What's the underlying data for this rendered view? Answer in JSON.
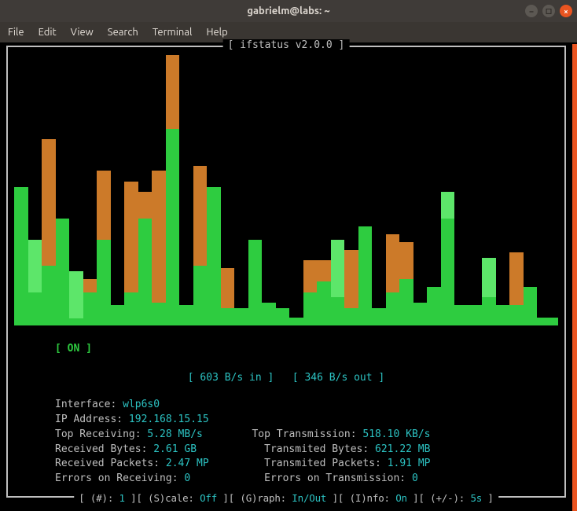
{
  "window": {
    "title": "gabrielm@labs: ~"
  },
  "menubar": [
    "File",
    "Edit",
    "View",
    "Search",
    "Terminal",
    "Help"
  ],
  "app": {
    "title": "[ ifstatus v2.0.0 ]",
    "status": "[ ON ]",
    "rate_in_label": "[ 603 B/s in ]",
    "rate_out_label": "[ 346 B/s out ]"
  },
  "stats": {
    "interface_label": "Interface: ",
    "interface": "wlp6s0",
    "ip_label": "IP Address: ",
    "ip": "192.168.15.15",
    "top_rx_label": "Top Receiving: ",
    "top_rx": "5.28 MB/s",
    "top_tx_label": "Top Transmission: ",
    "top_tx": "518.10 KB/s",
    "rx_bytes_label": "Received Bytes: ",
    "rx_bytes": "2.61 GB",
    "tx_bytes_label": "Transmited Bytes: ",
    "tx_bytes": "621.22 MB",
    "rx_pkts_label": "Received Packets: ",
    "rx_pkts": "2.47 MP",
    "tx_pkts_label": "Transmited Packets: ",
    "tx_pkts": "1.91 MP",
    "err_rx_label": "Errors on Receiving: ",
    "err_rx": "0",
    "err_tx_label": "Errors on Transmission: ",
    "err_tx": "0"
  },
  "footer": {
    "items": [
      {
        "k": "(#)",
        "v": "1"
      },
      {
        "k": "(S)cale",
        "v": "Off"
      },
      {
        "k": "(G)raph",
        "v": "In/Out"
      },
      {
        "k": "(I)nfo",
        "v": "On"
      },
      {
        "k": "(+/-)",
        "v": "5s"
      }
    ]
  },
  "chart": {
    "type": "bar",
    "colors": {
      "in": "#2ecc40",
      "in_light": "#5de66a",
      "out": "#cc7a29",
      "bg": "#000000"
    },
    "max": 100,
    "baseline_pct": 3,
    "bars": [
      {
        "inL": 0,
        "in": 50,
        "out": 0
      },
      {
        "inL": 20,
        "in": 10,
        "out": 0
      },
      {
        "inL": 0,
        "in": 20,
        "out": 48
      },
      {
        "inL": 0,
        "in": 38,
        "out": 0
      },
      {
        "inL": 18,
        "in": 0,
        "out": 0
      },
      {
        "inL": 0,
        "in": 10,
        "out": 5
      },
      {
        "inL": 0,
        "in": 30,
        "out": 26
      },
      {
        "inL": 0,
        "in": 5,
        "out": 0
      },
      {
        "inL": 0,
        "in": 10,
        "out": 42
      },
      {
        "inL": 0,
        "in": 38,
        "out": 10
      },
      {
        "inL": 0,
        "in": 6,
        "out": 50
      },
      {
        "inL": 0,
        "in": 72,
        "out": 28
      },
      {
        "inL": 0,
        "in": 5,
        "out": 0
      },
      {
        "inL": 0,
        "in": 20,
        "out": 38
      },
      {
        "inL": 0,
        "in": 50,
        "out": 0
      },
      {
        "inL": 0,
        "in": 4,
        "out": 15
      },
      {
        "inL": 0,
        "in": 4,
        "out": 0
      },
      {
        "inL": 0,
        "in": 30,
        "out": 0
      },
      {
        "inL": 0,
        "in": 6,
        "out": 0
      },
      {
        "inL": 0,
        "in": 4,
        "out": 0
      },
      {
        "inL": 0,
        "in": 0,
        "out": 0
      },
      {
        "inL": 0,
        "in": 10,
        "out": 12
      },
      {
        "inL": 0,
        "in": 14,
        "out": 8
      },
      {
        "inL": 22,
        "in": 8,
        "out": 0
      },
      {
        "inL": 0,
        "in": 4,
        "out": 22
      },
      {
        "inL": 0,
        "in": 35,
        "out": 0
      },
      {
        "inL": 0,
        "in": 4,
        "out": 0
      },
      {
        "inL": 0,
        "in": 10,
        "out": 22
      },
      {
        "inL": 0,
        "in": 15,
        "out": 14
      },
      {
        "inL": 0,
        "in": 6,
        "out": 0
      },
      {
        "inL": 0,
        "in": 12,
        "out": 0
      },
      {
        "inL": 10,
        "in": 38,
        "out": 0
      },
      {
        "inL": 0,
        "in": 5,
        "out": 0
      },
      {
        "inL": 0,
        "in": 5,
        "out": 0
      },
      {
        "inL": 15,
        "in": 8,
        "out": 0
      },
      {
        "inL": 0,
        "in": 5,
        "out": 0
      },
      {
        "inL": 0,
        "in": 5,
        "out": 20
      },
      {
        "inL": 0,
        "in": 12,
        "out": 0
      }
    ]
  }
}
